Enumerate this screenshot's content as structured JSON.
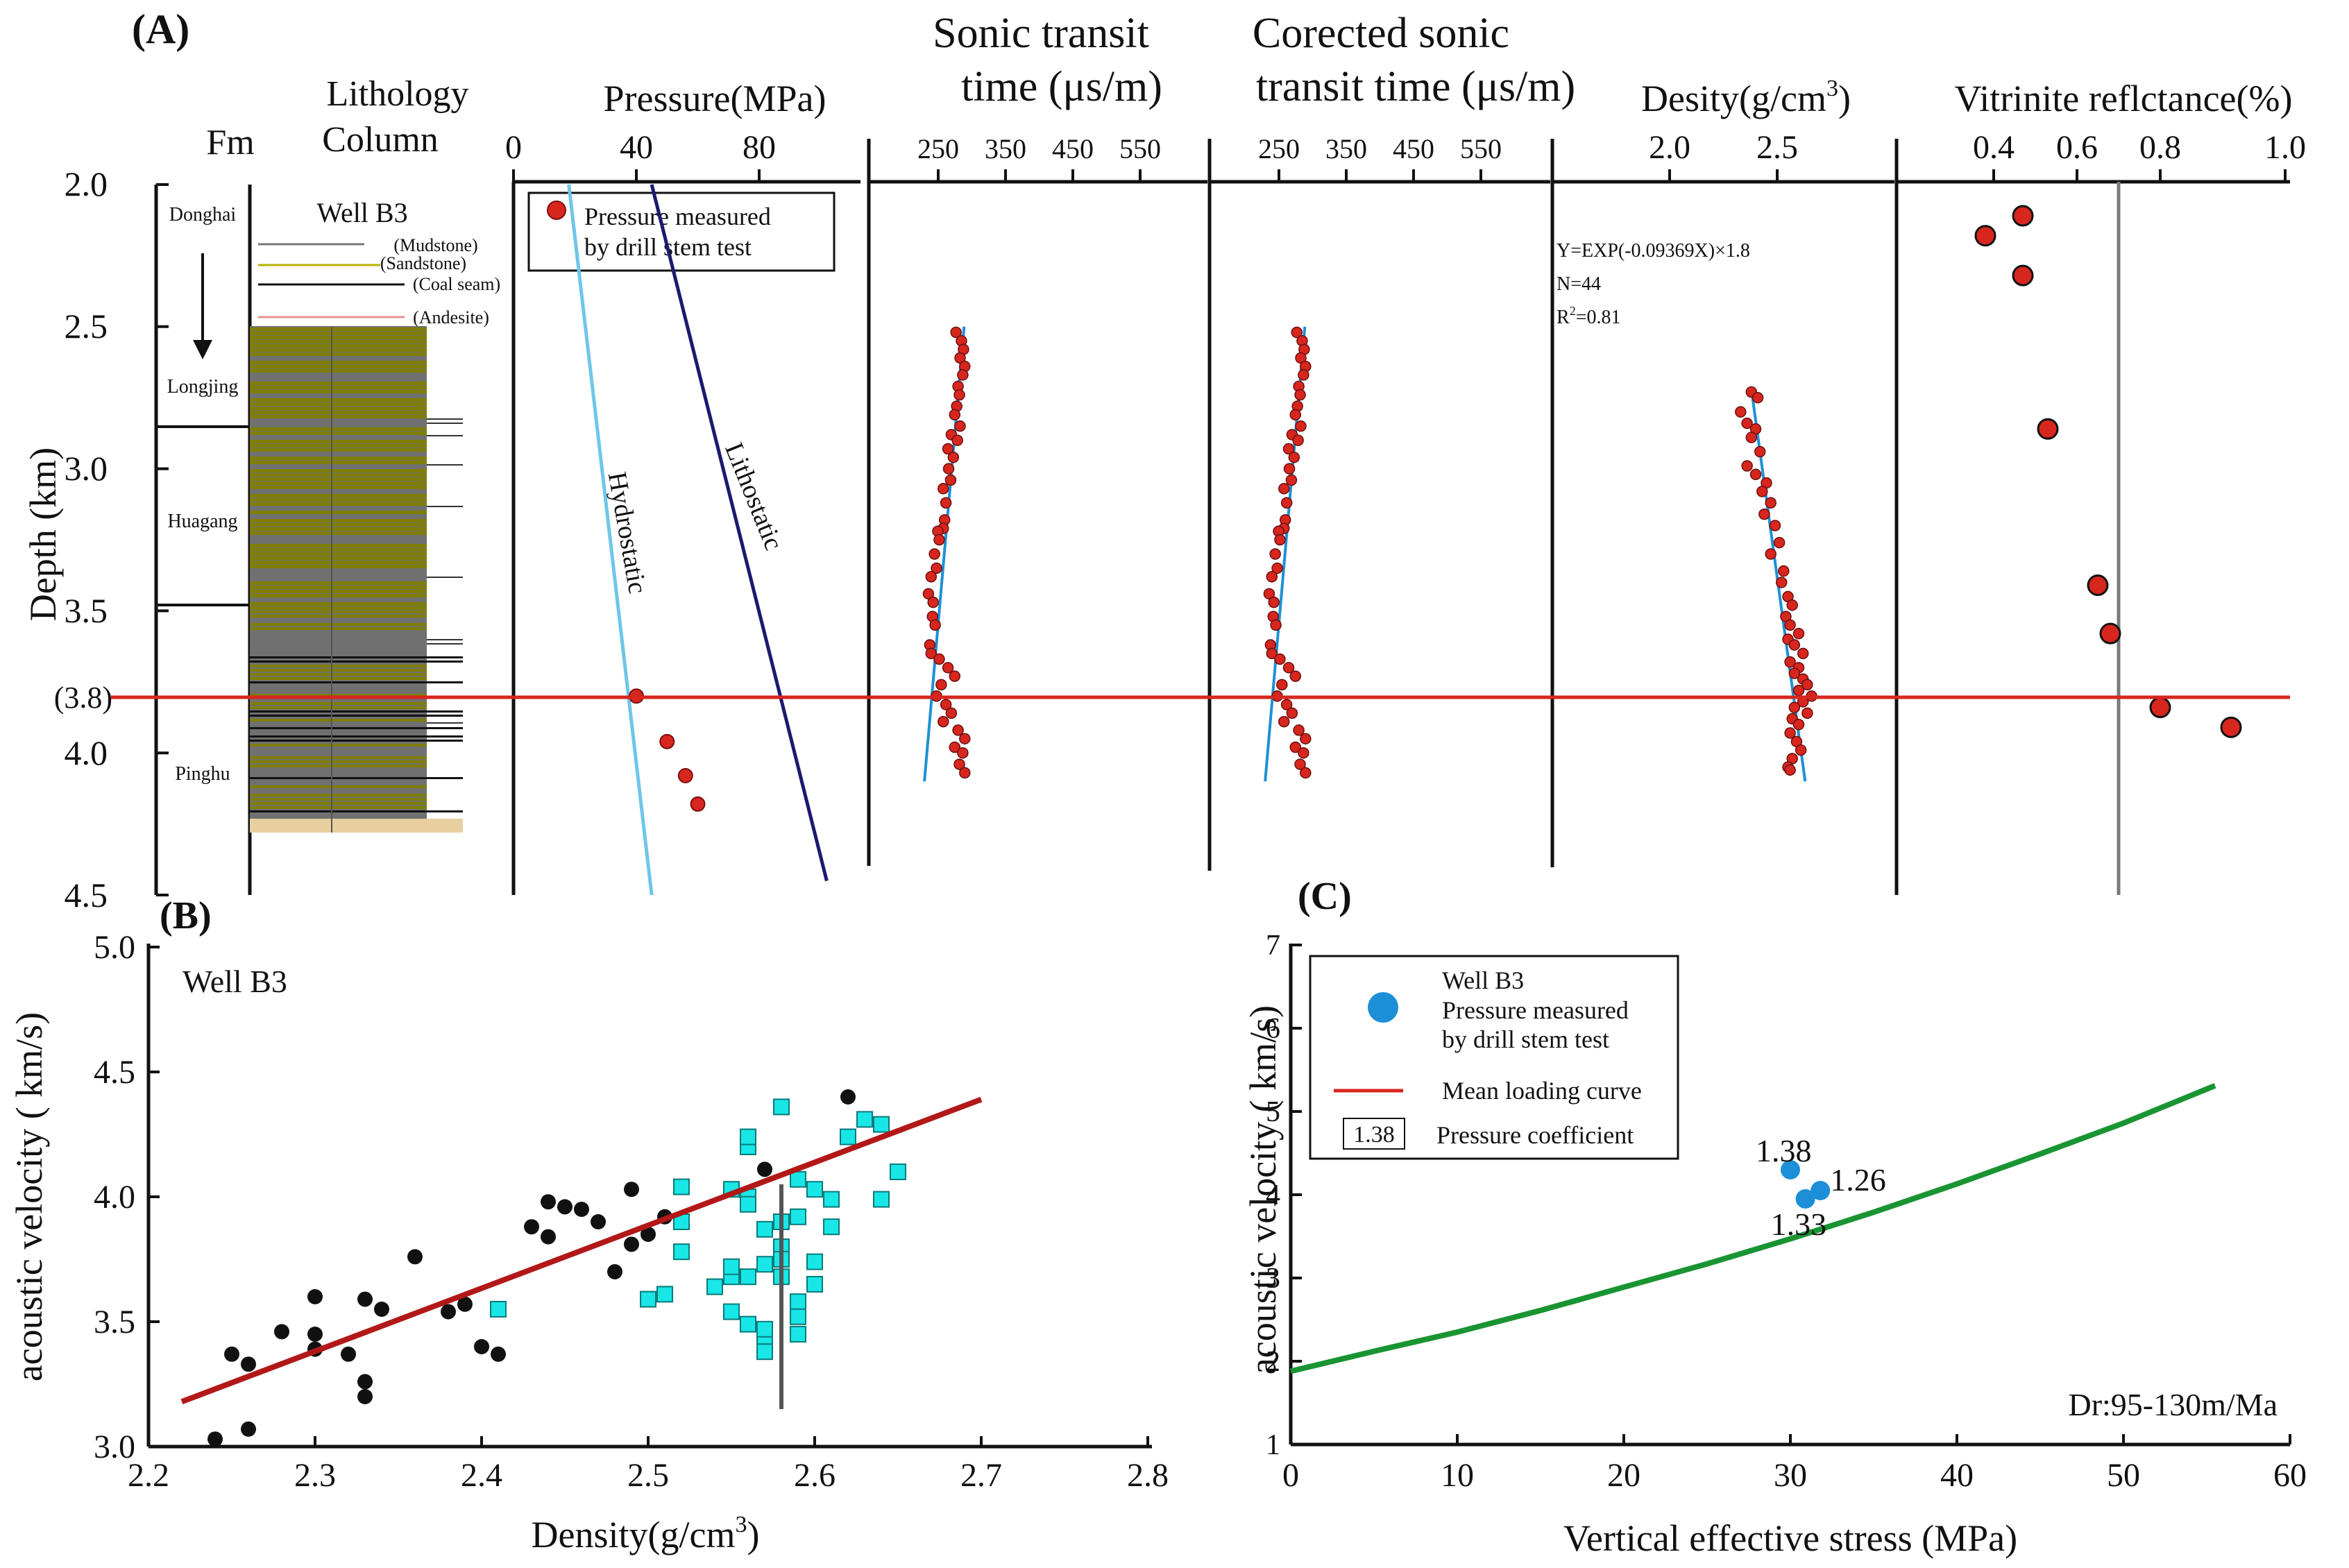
{
  "panel_A": {
    "label": "(A)",
    "fm_header": "Fm",
    "lith_header": [
      "Lithology",
      "Column"
    ],
    "well": "Well B3",
    "lith_legend": [
      "(Mudstone)",
      "(Sandstone)",
      "(Coal seam)",
      "(Andesite)"
    ],
    "formations": [
      "Donghai",
      "Longjing",
      "Huagang",
      "Pinghu"
    ],
    "depth_label": "Depth (km)",
    "depth_ticks": [
      "2.0",
      "2.5",
      "3.0",
      "3.5",
      "(3.8)",
      "4.0",
      "4.5"
    ],
    "pressure_title": "Pressure(MPa)",
    "pressure_ticks": [
      "0",
      "40",
      "80"
    ],
    "pressure_legend": [
      "Pressure measured",
      "by drill stem test"
    ],
    "hydro_label": "Hydrostatic",
    "litho_label": "Lithostatic",
    "sonic_title": [
      "Sonic transit",
      "time (μs/m)"
    ],
    "sonic_ticks": [
      "250",
      "350",
      "450",
      "550"
    ],
    "csonic_title": [
      "Corected sonic",
      "transit time (μs/m)"
    ],
    "csonic_ticks": [
      "250",
      "350",
      "450",
      "550"
    ],
    "density_title": "Desity(g/cm",
    "density_sup": "3",
    "density_title_end": ")",
    "density_ticks": [
      "2.0",
      "2.5"
    ],
    "density_eq": "Y=EXP(-0.09369X)×1.8",
    "density_n": "N=44",
    "density_r2": "R",
    "density_r2_sup": "2",
    "density_r2_val": "=0.81",
    "ro_title": "Vitrinite reflctance(%)",
    "ro_ticks": [
      "0.4",
      "0.6",
      "0.8",
      "1.0"
    ]
  },
  "panel_B": {
    "label": "(B)",
    "well": "Well B3",
    "xlabel": "Density(g/cm",
    "xlabel_sup": "3",
    "xlabel_end": ")",
    "ylabel": "acoustic velocity ( km/s)",
    "xticks": [
      "2.2",
      "2.3",
      "2.4",
      "2.5",
      "2.6",
      "2.7",
      "2.8"
    ],
    "yticks": [
      "3.0",
      "3.5",
      "4.0",
      "4.5",
      "5.0"
    ]
  },
  "panel_C": {
    "label": "(C)",
    "xlabel": "Vertical effective stress (MPa)",
    "ylabel": "acoustic velocity ( km/s)",
    "xticks": [
      "0",
      "10",
      "20",
      "30",
      "40",
      "50",
      "60"
    ],
    "yticks": [
      "1",
      "2",
      "3",
      "4",
      "5",
      "6",
      "7"
    ],
    "legend": [
      "Well B3",
      "Pressure measured",
      "by drill stem test",
      "Mean loading curve",
      "1.38",
      "Pressure coefficient"
    ],
    "note": "Dr:95-130m/Ma"
  },
  "colors": {
    "red": "#d7261e",
    "hydro": "#6ec6ea",
    "litho": "#1c1a6e",
    "fit": "#1e90d6",
    "sand": "#7f7e00",
    "grey": "#7a7a7a",
    "cyan": "#19e6e6",
    "green": "#1a9432",
    "dst": "#1c8fd8"
  },
  "chart_data": [
    {
      "type": "scatter",
      "panel": "A-pressure",
      "series": [
        {
          "name": "Pressure measured by drill stem test",
          "x": [
            40,
            50,
            56,
            60
          ],
          "y": [
            3.8,
            3.96,
            4.08,
            4.18
          ]
        }
      ],
      "lines": [
        {
          "name": "Hydrostatic",
          "x": [
            18,
            45
          ],
          "y": [
            2.0,
            4.5
          ]
        },
        {
          "name": "Lithostatic",
          "x": [
            45,
            102
          ],
          "y": [
            2.0,
            4.45
          ]
        }
      ],
      "xlim": [
        0,
        120
      ],
      "ylim": [
        2.0,
        4.5
      ],
      "red_line_depth": 3.8
    },
    {
      "type": "scatter",
      "panel": "A-sonic",
      "trend": {
        "x": [
          289,
          230
        ],
        "y": [
          2.5,
          4.1
        ]
      },
      "points": [
        [
          277,
          2.52
        ],
        [
          285,
          2.55
        ],
        [
          288,
          2.58
        ],
        [
          283,
          2.61
        ],
        [
          290,
          2.64
        ],
        [
          287,
          2.67
        ],
        [
          280,
          2.71
        ],
        [
          282,
          2.74
        ],
        [
          278,
          2.78
        ],
        [
          275,
          2.81
        ],
        [
          283,
          2.85
        ],
        [
          270,
          2.88
        ],
        [
          279,
          2.9
        ],
        [
          265,
          2.93
        ],
        [
          273,
          2.96
        ],
        [
          266,
          3.0
        ],
        [
          269,
          3.04
        ],
        [
          258,
          3.07
        ],
        [
          262,
          3.12
        ],
        [
          260,
          3.18
        ],
        [
          258,
          3.21
        ],
        [
          250,
          3.22
        ],
        [
          252,
          3.25
        ],
        [
          245,
          3.3
        ],
        [
          248,
          3.35
        ],
        [
          240,
          3.38
        ],
        [
          236,
          3.44
        ],
        [
          243,
          3.47
        ],
        [
          242,
          3.52
        ],
        [
          246,
          3.55
        ],
        [
          238,
          3.62
        ],
        [
          240,
          3.65
        ],
        [
          252,
          3.67
        ],
        [
          265,
          3.7
        ],
        [
          275,
          3.73
        ],
        [
          255,
          3.76
        ],
        [
          248,
          3.8
        ],
        [
          262,
          3.83
        ],
        [
          270,
          3.86
        ],
        [
          258,
          3.89
        ],
        [
          280,
          3.92
        ],
        [
          290,
          3.95
        ],
        [
          275,
          3.98
        ],
        [
          287,
          4.0
        ],
        [
          282,
          4.04
        ],
        [
          290,
          4.07
        ]
      ],
      "xlim": [
        200,
        600
      ],
      "ylim": [
        2.0,
        4.5
      ]
    },
    {
      "type": "scatter",
      "panel": "A-corrected-sonic",
      "trend": {
        "x": [
          289,
          230
        ],
        "y": [
          2.5,
          4.1
        ]
      },
      "points": [
        [
          277,
          2.52
        ],
        [
          285,
          2.55
        ],
        [
          288,
          2.58
        ],
        [
          283,
          2.61
        ],
        [
          290,
          2.64
        ],
        [
          287,
          2.67
        ],
        [
          280,
          2.71
        ],
        [
          282,
          2.74
        ],
        [
          278,
          2.78
        ],
        [
          275,
          2.81
        ],
        [
          283,
          2.85
        ],
        [
          270,
          2.88
        ],
        [
          279,
          2.9
        ],
        [
          265,
          2.93
        ],
        [
          273,
          2.96
        ],
        [
          266,
          3.0
        ],
        [
          269,
          3.04
        ],
        [
          258,
          3.07
        ],
        [
          262,
          3.12
        ],
        [
          260,
          3.18
        ],
        [
          258,
          3.21
        ],
        [
          250,
          3.22
        ],
        [
          252,
          3.25
        ],
        [
          245,
          3.3
        ],
        [
          248,
          3.35
        ],
        [
          240,
          3.38
        ],
        [
          236,
          3.44
        ],
        [
          243,
          3.47
        ],
        [
          242,
          3.52
        ],
        [
          246,
          3.55
        ],
        [
          238,
          3.62
        ],
        [
          240,
          3.65
        ],
        [
          252,
          3.67
        ],
        [
          265,
          3.7
        ],
        [
          275,
          3.73
        ],
        [
          255,
          3.76
        ],
        [
          248,
          3.8
        ],
        [
          262,
          3.83
        ],
        [
          270,
          3.86
        ],
        [
          258,
          3.89
        ],
        [
          280,
          3.92
        ],
        [
          290,
          3.95
        ],
        [
          275,
          3.98
        ],
        [
          287,
          4.0
        ],
        [
          282,
          4.04
        ],
        [
          290,
          4.07
        ]
      ],
      "xlim": [
        200,
        600
      ],
      "ylim": [
        2.0,
        4.5
      ]
    },
    {
      "type": "scatter",
      "panel": "A-density",
      "trend": {
        "x": [
          2.38,
          2.63
        ],
        "y": [
          2.72,
          4.1
        ]
      },
      "points": [
        [
          2.38,
          2.73
        ],
        [
          2.41,
          2.75
        ],
        [
          2.33,
          2.8
        ],
        [
          2.36,
          2.84
        ],
        [
          2.4,
          2.86
        ],
        [
          2.38,
          2.89
        ],
        [
          2.42,
          2.94
        ],
        [
          2.36,
          2.99
        ],
        [
          2.4,
          3.02
        ],
        [
          2.45,
          3.05
        ],
        [
          2.43,
          3.08
        ],
        [
          2.47,
          3.12
        ],
        [
          2.44,
          3.16
        ],
        [
          2.49,
          3.2
        ],
        [
          2.51,
          3.26
        ],
        [
          2.47,
          3.3
        ],
        [
          2.53,
          3.36
        ],
        [
          2.52,
          3.4
        ],
        [
          2.55,
          3.45
        ],
        [
          2.57,
          3.48
        ],
        [
          2.54,
          3.52
        ],
        [
          2.56,
          3.55
        ],
        [
          2.6,
          3.58
        ],
        [
          2.55,
          3.6
        ],
        [
          2.58,
          3.62
        ],
        [
          2.62,
          3.65
        ],
        [
          2.56,
          3.68
        ],
        [
          2.6,
          3.7
        ],
        [
          2.58,
          3.72
        ],
        [
          2.62,
          3.74
        ],
        [
          2.64,
          3.76
        ],
        [
          2.6,
          3.78
        ],
        [
          2.66,
          3.8
        ],
        [
          2.62,
          3.82
        ],
        [
          2.58,
          3.84
        ],
        [
          2.64,
          3.86
        ],
        [
          2.57,
          3.88
        ],
        [
          2.6,
          3.9
        ],
        [
          2.56,
          3.93
        ],
        [
          2.59,
          3.96
        ],
        [
          2.61,
          3.99
        ],
        [
          2.57,
          4.02
        ],
        [
          2.55,
          4.05
        ],
        [
          2.56,
          4.06
        ]
      ],
      "xlim": [
        1.6,
        3.2
      ],
      "ylim": [
        2.0,
        4.5
      ]
    },
    {
      "type": "scatter",
      "panel": "A-vitrinite",
      "x": [
        0.47,
        0.38,
        0.47,
        0.53,
        0.65,
        0.68,
        0.8,
        0.97
      ],
      "y": [
        2.11,
        2.18,
        2.32,
        2.86,
        3.41,
        3.58,
        3.84,
        3.91
      ],
      "ref_line_x": 0.7,
      "xlim": [
        0.3,
        1.0
      ],
      "ylim": [
        2.0,
        4.5
      ]
    },
    {
      "type": "scatter",
      "panel": "B",
      "title": "Well B3",
      "xlabel": "Density(g/cm3)",
      "ylabel": "acoustic velocity ( km/s)",
      "xlim": [
        2.2,
        2.8
      ],
      "ylim": [
        3.0,
        5.0
      ],
      "fit": {
        "x": [
          2.22,
          2.7
        ],
        "y": [
          3.18,
          4.39
        ]
      },
      "vertical_line": {
        "x": 2.58,
        "y": [
          3.15,
          4.05
        ]
      },
      "series": [
        {
          "marker": "circle",
          "color": "#111111",
          "points": [
            [
              2.24,
              3.03
            ],
            [
              2.25,
              3.37
            ],
            [
              2.26,
              3.33
            ],
            [
              2.26,
              3.07
            ],
            [
              2.28,
              3.46
            ],
            [
              2.3,
              3.6
            ],
            [
              2.3,
              3.45
            ],
            [
              2.3,
              3.39
            ],
            [
              2.32,
              3.37
            ],
            [
              2.33,
              3.59
            ],
            [
              2.33,
              3.26
            ],
            [
              2.33,
              3.2
            ],
            [
              2.34,
              3.55
            ],
            [
              2.36,
              3.76
            ],
            [
              2.38,
              3.54
            ],
            [
              2.39,
              3.57
            ],
            [
              2.4,
              3.4
            ],
            [
              2.41,
              3.37
            ],
            [
              2.43,
              3.88
            ],
            [
              2.44,
              3.98
            ],
            [
              2.44,
              3.84
            ],
            [
              2.45,
              3.96
            ],
            [
              2.46,
              3.95
            ],
            [
              2.47,
              3.9
            ],
            [
              2.48,
              3.7
            ],
            [
              2.49,
              4.03
            ],
            [
              2.49,
              3.81
            ],
            [
              2.5,
              3.85
            ],
            [
              2.51,
              3.61
            ],
            [
              2.51,
              3.92
            ],
            [
              2.55,
              3.71
            ],
            [
              2.57,
              4.11
            ],
            [
              2.62,
              4.4
            ]
          ]
        },
        {
          "marker": "square",
          "color": "#19e6e6",
          "points": [
            [
              2.41,
              3.55
            ],
            [
              2.5,
              3.59
            ],
            [
              2.51,
              3.61
            ],
            [
              2.52,
              3.9
            ],
            [
              2.52,
              3.78
            ],
            [
              2.52,
              4.04
            ],
            [
              2.54,
              3.64
            ],
            [
              2.55,
              3.68
            ],
            [
              2.55,
              3.72
            ],
            [
              2.55,
              3.54
            ],
            [
              2.55,
              4.03
            ],
            [
              2.56,
              3.68
            ],
            [
              2.56,
              3.49
            ],
            [
              2.56,
              4.0
            ],
            [
              2.56,
              4.2
            ],
            [
              2.56,
              3.97
            ],
            [
              2.56,
              4.24
            ],
            [
              2.57,
              3.87
            ],
            [
              2.57,
              3.73
            ],
            [
              2.57,
              3.41
            ],
            [
              2.57,
              3.47
            ],
            [
              2.57,
              3.38
            ],
            [
              2.58,
              4.36
            ],
            [
              2.58,
              3.9
            ],
            [
              2.58,
              3.8
            ],
            [
              2.58,
              3.75
            ],
            [
              2.58,
              3.68
            ],
            [
              2.59,
              3.58
            ],
            [
              2.59,
              3.52
            ],
            [
              2.59,
              3.45
            ],
            [
              2.59,
              4.07
            ],
            [
              2.59,
              3.92
            ],
            [
              2.6,
              3.65
            ],
            [
              2.6,
              3.74
            ],
            [
              2.6,
              4.03
            ],
            [
              2.61,
              3.88
            ],
            [
              2.61,
              3.99
            ],
            [
              2.62,
              4.24
            ],
            [
              2.63,
              4.31
            ],
            [
              2.64,
              4.29
            ],
            [
              2.64,
              3.99
            ],
            [
              2.65,
              4.1
            ]
          ]
        }
      ]
    },
    {
      "type": "line",
      "panel": "C",
      "xlabel": "Vertical effective stress (MPa)",
      "ylabel": "acoustic velocity ( km/s)",
      "xlim": [
        0,
        60
      ],
      "ylim": [
        1,
        7
      ],
      "series": [
        {
          "name": "Mean loading curve",
          "x": [
            0,
            5,
            10,
            15,
            20,
            25,
            30,
            35,
            40,
            45,
            50,
            55.5
          ],
          "y": [
            1.88,
            2.12,
            2.35,
            2.61,
            2.89,
            3.17,
            3.47,
            3.79,
            4.13,
            4.49,
            4.86,
            5.31
          ]
        }
      ],
      "points": [
        {
          "name": "Well B3 Pressure measured by drill stem test",
          "x": 30.0,
          "y": 4.3,
          "label": "1.38"
        },
        {
          "name": "Well B3 Pressure measured by drill stem test",
          "x": 31.8,
          "y": 4.05,
          "label": "1.26"
        },
        {
          "name": "Well B3 Pressure measured by drill stem test",
          "x": 30.9,
          "y": 3.95,
          "label": "1.33"
        }
      ],
      "annotation": "Dr:95-130m/Ma"
    }
  ]
}
